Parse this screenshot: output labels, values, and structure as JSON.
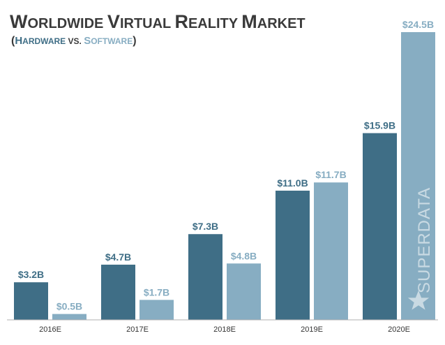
{
  "title_parts": [
    "W",
    "ORLDWIDE ",
    "V",
    "IRTUAL ",
    "R",
    "EALITY ",
    "M",
    "ARKET"
  ],
  "subtitle_parts": {
    "open": "(",
    "hardware_cap": "H",
    "hardware_rest": "ARDWARE",
    "vs": " VS. ",
    "software_cap": "S",
    "software_rest": "OFTWARE",
    "close": ")"
  },
  "watermark": "SUPERDATA",
  "colors": {
    "hardware": "#3f6e86",
    "software": "#87adc2",
    "title": "#3a3a3a",
    "axis": "#b0b0b0",
    "watermark": "#ffffff"
  },
  "chart_data": {
    "type": "bar",
    "title": "Worldwide Virtual Reality Market",
    "subtitle": "(Hardware vs. Software)",
    "categories": [
      "2016E",
      "2017E",
      "2018E",
      "2019E",
      "2020E"
    ],
    "series": [
      {
        "name": "Hardware",
        "values": [
          3.2,
          4.7,
          7.3,
          11.0,
          15.9
        ],
        "labels": [
          "$3.2B",
          "$4.7B",
          "$7.3B",
          "$11.0B",
          "$15.9B"
        ]
      },
      {
        "name": "Software",
        "values": [
          0.5,
          1.7,
          4.8,
          11.7,
          24.5
        ],
        "labels": [
          "$0.5B",
          "$1.7B",
          "$4.8B",
          "$11.7B",
          "$24.5B"
        ]
      }
    ],
    "unit": "Billion USD",
    "ylim": [
      0,
      24.5
    ],
    "grid": false,
    "legend": "subtitle"
  }
}
